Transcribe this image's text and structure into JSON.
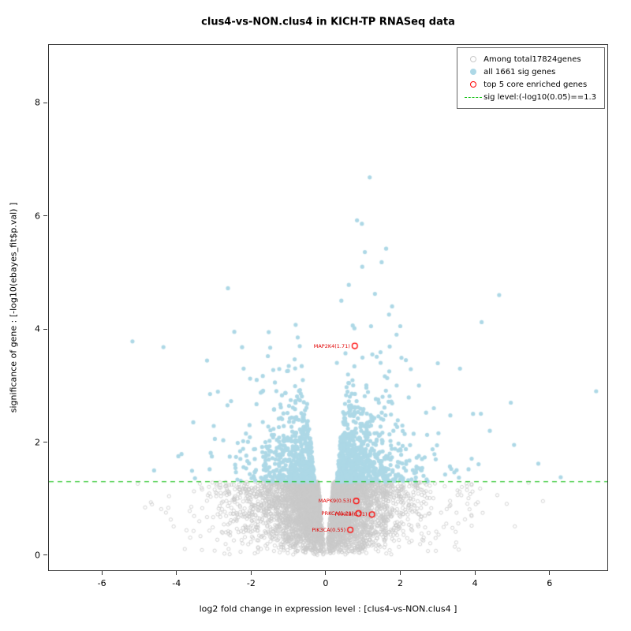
{
  "title": "clus4-vs-NON.clus4 in KICH-TP RNASeq data",
  "axes": {
    "x": {
      "label": "log2 fold change in expression level : [clus4-vs-NON.clus4 ]",
      "ticks": [
        -6,
        -4,
        -2,
        0,
        2,
        4,
        6
      ],
      "range": [
        -7.42,
        7.55
      ]
    },
    "y": {
      "label": "significance of gene : [-log10(ebayes_fit$p.val) ]",
      "ticks": [
        0,
        2,
        4,
        6,
        8
      ],
      "range": [
        -0.265,
        9.02
      ]
    }
  },
  "legend": {
    "items": [
      {
        "label": "Among total17824genes",
        "type": "open-circle",
        "color": "#c9c9c9"
      },
      {
        "label": "all 1661 sig genes",
        "type": "filled-circle",
        "color": "#add8e6"
      },
      {
        "label": "top 5 core enriched genes",
        "type": "open-circle",
        "color": "#ff0000"
      },
      {
        "label": "sig level:(-log10(0.05)==1.3",
        "type": "dashed-line",
        "color": "#00bb00"
      }
    ]
  },
  "chart_data": {
    "type": "scatter",
    "title": "clus4-vs-NON.clus4 in KICH-TP RNASeq data",
    "xlabel": "log2 fold change in expression level : [clus4-vs-NON.clus4 ]",
    "ylabel": "significance of gene : [-log10(ebayes_fit$p.val) ]",
    "xlim": [
      -7.42,
      7.55
    ],
    "ylim": [
      -0.265,
      9.02
    ],
    "sig_level": 1.3,
    "total_genes": 17824,
    "sig_genes": 1661,
    "top_core_enriched": 5,
    "colors": {
      "nonsig": "#c9c9c9",
      "sig": "#add8e6",
      "highlight": "#ff0000",
      "sig_line": "#00bb00"
    },
    "highlighted_points": [
      {
        "label": "MAP2K4(1.71)",
        "x": 0.78,
        "y": 3.7
      },
      {
        "label": "MAPK9(0.53)",
        "x": 0.82,
        "y": 0.96
      },
      {
        "label": "PRKCA(1.21)",
        "x": 0.88,
        "y": 0.74
      },
      {
        "label": "PRKCB(0.71)",
        "x": 1.24,
        "y": 0.72
      },
      {
        "label": "PIK3CA(0.55)",
        "x": 0.66,
        "y": 0.45
      }
    ],
    "notable_sig_points": [
      [
        1.18,
        6.68
      ],
      [
        0.84,
        5.92
      ],
      [
        0.97,
        5.86
      ],
      [
        1.62,
        5.42
      ],
      [
        1.05,
        5.36
      ],
      [
        1.5,
        5.18
      ],
      [
        0.98,
        5.1
      ],
      [
        0.62,
        4.78
      ],
      [
        1.32,
        4.62
      ],
      [
        0.42,
        4.5
      ],
      [
        1.78,
        4.4
      ],
      [
        2.0,
        4.05
      ],
      [
        1.9,
        3.9
      ],
      [
        -2.62,
        4.72
      ],
      [
        -2.45,
        3.95
      ],
      [
        -5.18,
        3.78
      ],
      [
        -4.35,
        3.68
      ],
      [
        -1.55,
        3.52
      ],
      [
        -3.1,
        2.85
      ],
      [
        -3.55,
        2.35
      ],
      [
        -3.95,
        1.75
      ],
      [
        -4.6,
        1.5
      ],
      [
        4.65,
        4.6
      ],
      [
        4.18,
        4.12
      ],
      [
        3.6,
        3.3
      ],
      [
        3.95,
        2.5
      ],
      [
        4.4,
        2.2
      ],
      [
        5.05,
        1.95
      ],
      [
        5.7,
        1.62
      ],
      [
        6.3,
        1.38
      ],
      [
        7.25,
        2.9
      ],
      [
        2.5,
        3.0
      ],
      [
        2.15,
        3.45
      ],
      [
        -2.2,
        3.3
      ],
      [
        -1.85,
        3.1
      ],
      [
        0.53,
        3.57
      ],
      [
        1.25,
        3.55
      ],
      [
        0.3,
        3.4
      ],
      [
        -0.75,
        3.85
      ],
      [
        2.9,
        2.6
      ]
    ],
    "generator": {
      "seed": 1337,
      "n_nonsig_rendered": 5200,
      "n_sig_rendered": 1430,
      "nonsig_y_pow": 0.62,
      "nonsig_gap": [
        0.02,
        0.14
      ],
      "nonsig_spread": 0.72,
      "sig_y_mean": 0.5,
      "sig_y_max": 4.6,
      "sig_gap": [
        0.1,
        0.145
      ],
      "sig_spread": 0.65,
      "sig_pos_frac": 0.55
    }
  }
}
